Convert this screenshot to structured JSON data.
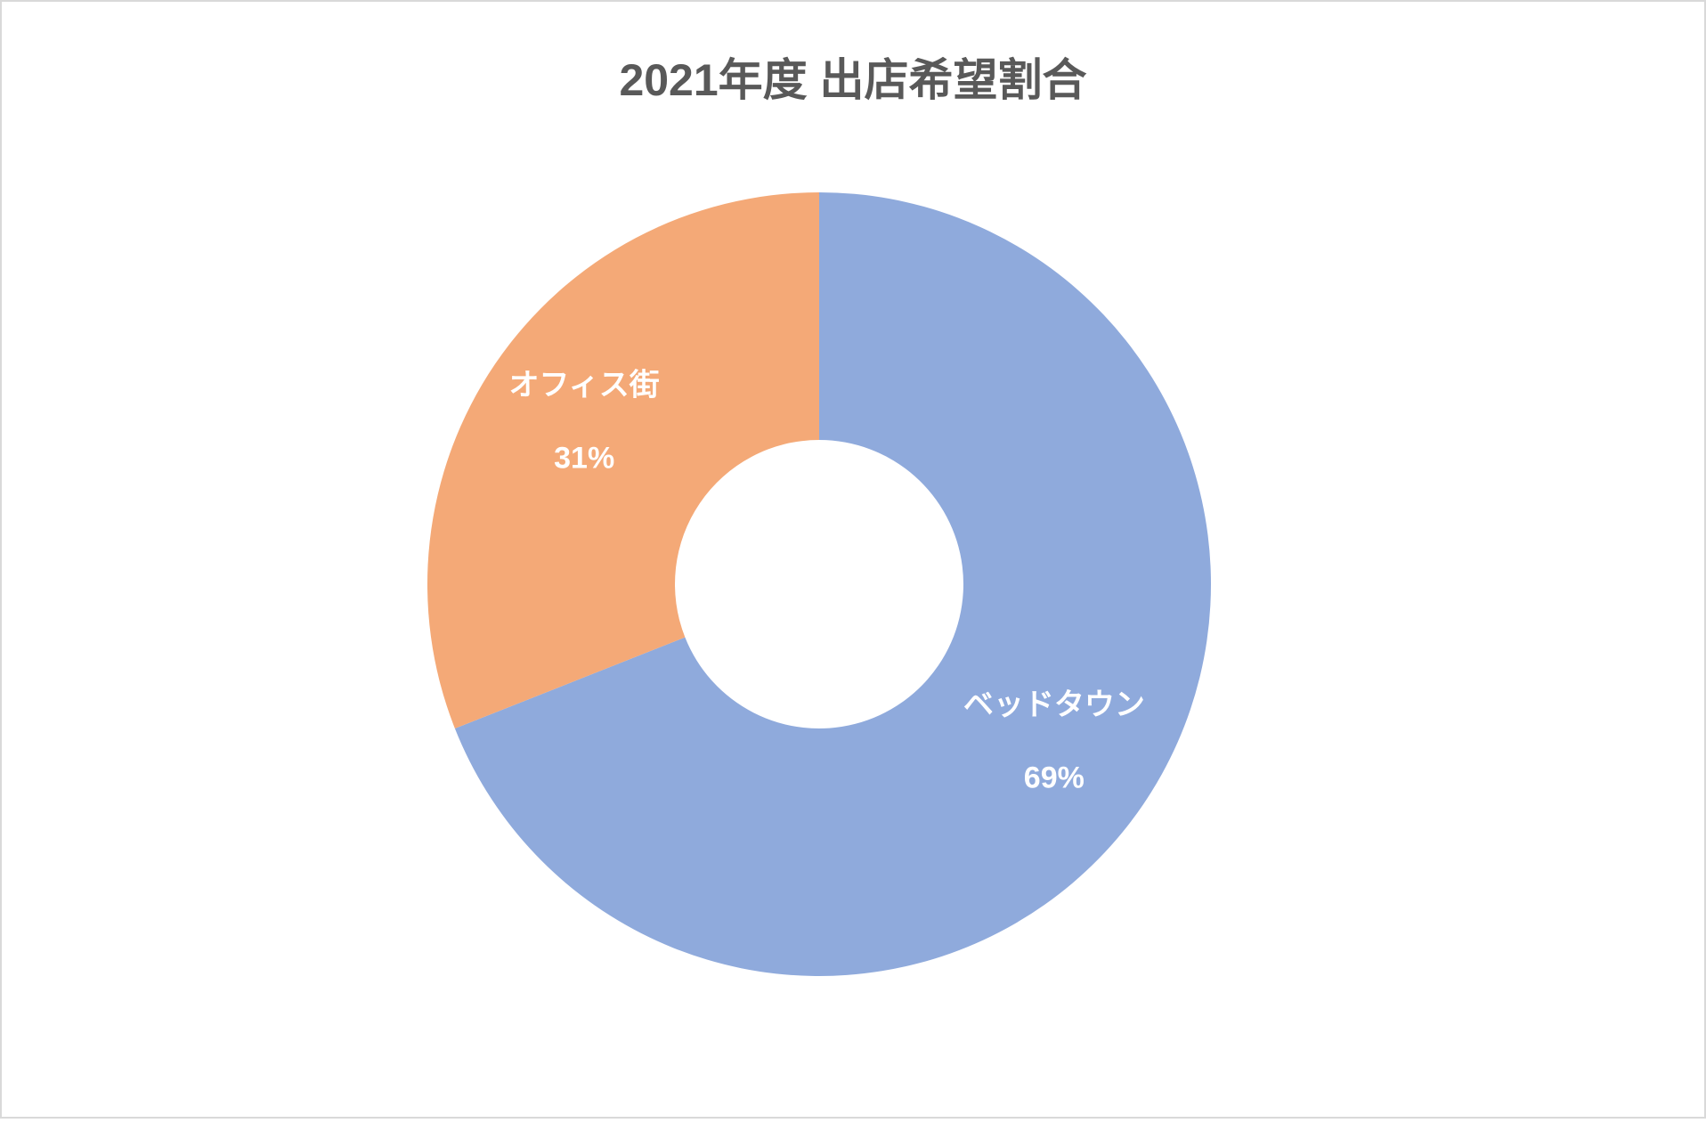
{
  "chart_data": {
    "type": "donut",
    "title": "2021年度 出店希望割合",
    "categories": [
      "ベッドタウン",
      "オフィス街"
    ],
    "values": [
      69,
      31
    ],
    "value_labels": [
      "69%",
      "31%"
    ],
    "colors": [
      "#8faadc",
      "#f4a977"
    ]
  }
}
